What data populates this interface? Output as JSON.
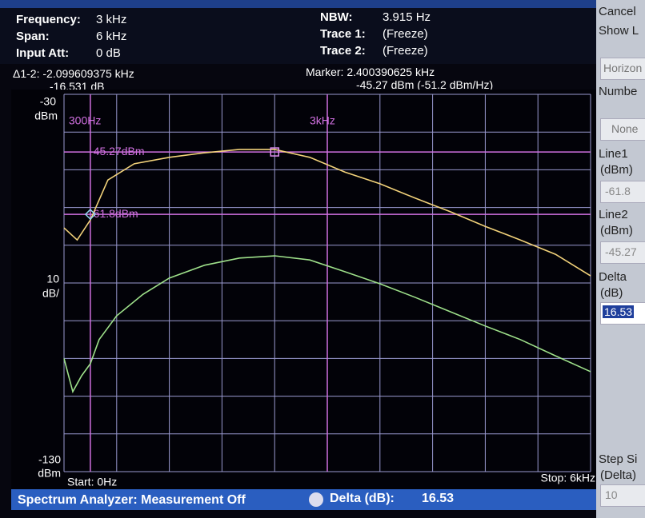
{
  "header": {
    "left": [
      [
        "Frequency:",
        "3 kHz"
      ],
      [
        "Span:",
        "6 kHz"
      ],
      [
        "Input Att:",
        "0 dB"
      ]
    ],
    "middle": [
      [
        "NBW:",
        "3.915 Hz"
      ],
      [
        "Trace 1:",
        "(Freeze)"
      ],
      [
        "Trace 2:",
        "(Freeze)"
      ]
    ]
  },
  "delta": {
    "label": "Δ1-2: -2.099609375 kHz",
    "db": "-16.531 dB"
  },
  "marker": {
    "label": "Marker:",
    "freq": 2.400390625,
    "freq_unit": "kHz",
    "level": -45.27,
    "level_text": "dBm (-51.2 dBm/Hz)"
  },
  "plot": {
    "xlim": [
      0,
      6
    ],
    "ylim": [
      -130,
      -30
    ],
    "y_unit": "dBm",
    "scale_div": 10,
    "scale_unit": "dB/",
    "vlines": [
      {
        "value": 0.3,
        "label": "300Hz"
      },
      {
        "value": 3,
        "label": "3kHz"
      }
    ],
    "hlines": [
      {
        "value": -45.27,
        "label": "-45.27dBm"
      },
      {
        "value": -61.8,
        "label": "-61.8dBm"
      }
    ],
    "start": "Start: 0Hz",
    "stop": "Stop: 6kHz",
    "traces": [
      {
        "color": "#f2d27a",
        "x": [
          0,
          0.15,
          0.3,
          0.5,
          0.8,
          1.2,
          1.6,
          2.0,
          2.4,
          2.8,
          3.2,
          3.6,
          4.0,
          4.4,
          4.8,
          5.2,
          5.6,
          6.0
        ],
        "values": [
          -65.4,
          -68.6,
          -63.3,
          -52.7,
          -48.4,
          -46.7,
          -45.5,
          -44.6,
          -44.6,
          -46.7,
          -50.6,
          -53.7,
          -57.5,
          -61.1,
          -65,
          -68.6,
          -72.4,
          -78.1
        ]
      },
      {
        "color": "#9ee08a",
        "x": [
          0,
          0.1,
          0.2,
          0.3,
          0.4,
          0.6,
          0.9,
          1.2,
          1.6,
          2.0,
          2.4,
          2.8,
          3.2,
          3.6,
          4.0,
          4.4,
          4.8,
          5.2,
          5.6,
          6.0
        ],
        "values": [
          -100,
          -108.8,
          -104.6,
          -101.4,
          -95,
          -88.7,
          -83,
          -78.7,
          -75.3,
          -73.4,
          -72.8,
          -73.9,
          -77,
          -80.2,
          -83.8,
          -87.6,
          -91.4,
          -95,
          -99.3,
          -103.5
        ]
      }
    ]
  },
  "status": {
    "text": "Spectrum Analyzer: Measurement Off",
    "delta_label": "Delta (dB):",
    "delta_value": "16.53"
  },
  "panel": {
    "cancel": "Cancel",
    "show": "Show L",
    "horizon": "Horizon",
    "number": "Numbe",
    "none": "None",
    "line1": [
      "Line1",
      "(dBm)"
    ],
    "line2": [
      "Line2",
      "(dBm)"
    ],
    "delta": [
      "Delta",
      "(dB)"
    ],
    "delta_value": "16.53",
    "step": [
      "Step Si",
      "(Delta)"
    ],
    "step_value": "10"
  }
}
